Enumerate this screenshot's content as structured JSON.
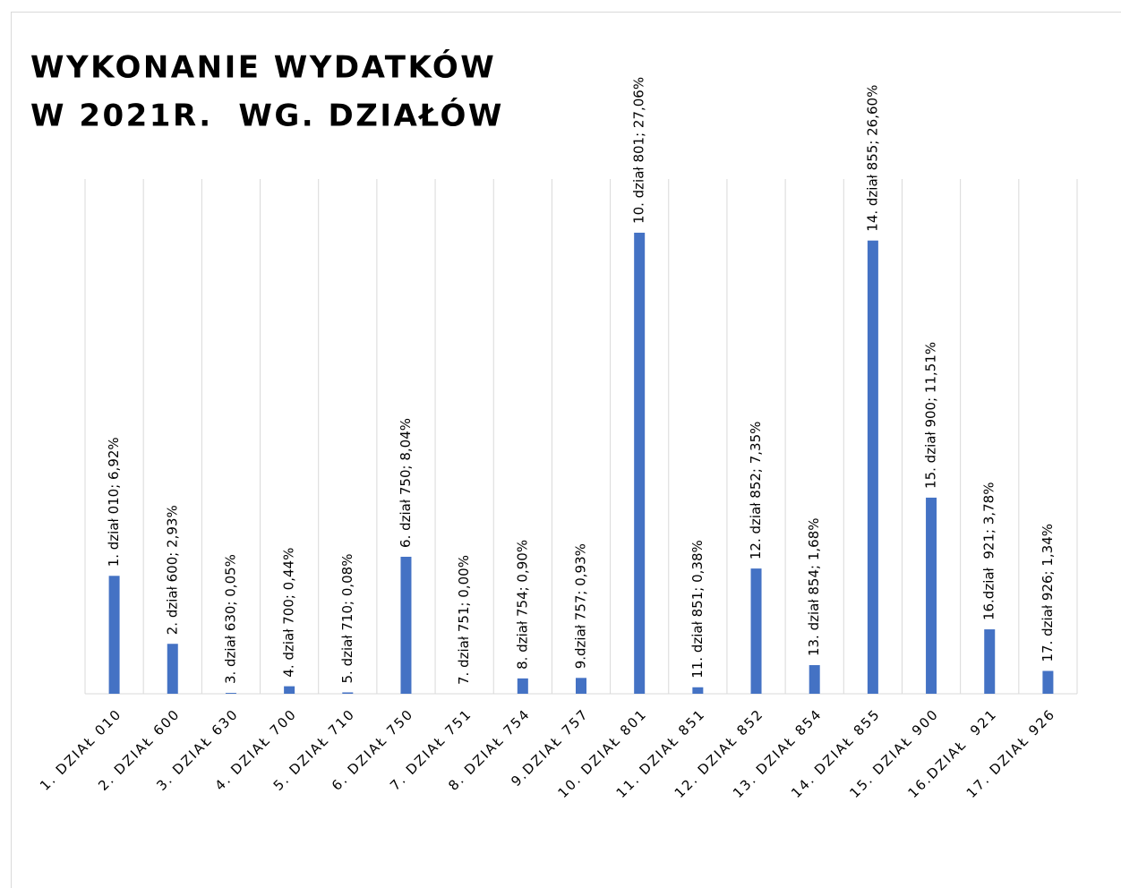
{
  "chart_data": {
    "type": "bar",
    "title": [
      "WYKONANIE WYDATKÓW",
      "W 2021R.  WG. DZIAŁÓW"
    ],
    "categories": [
      "1. DZIAŁ 010",
      "2. DZIAŁ 600",
      "3. DZIAŁ 630",
      "4. DZIAŁ 700",
      "5. DZIAŁ 710",
      "6. DZIAŁ 750",
      "7. DZIAŁ 751",
      "8. DZIAŁ 754",
      "9.DZIAŁ 757",
      "10. DZIAŁ 801",
      "11. DZIAŁ 851",
      "12. DZIAŁ 852",
      "13. DZIAŁ 854",
      "14. DZIAŁ 855",
      "15. DZIAŁ 900",
      "16.DZIAŁ  921",
      "17. DZIAŁ 926"
    ],
    "values": [
      6.92,
      2.93,
      0.05,
      0.44,
      0.08,
      8.04,
      0.0,
      0.9,
      0.93,
      27.06,
      0.38,
      7.35,
      1.68,
      26.6,
      11.51,
      3.78,
      1.34
    ],
    "value_labels": [
      "1. dział 010; 6,92%",
      "2. dział 600; 2,93%",
      "3. dział 630; 0,05%",
      "4. dział 700; 0,44%",
      "5. dział 710; 0,08%",
      "6. dział 750; 8,04%",
      "7. dział 751; 0,00%",
      "8. dział 754; 0,90%",
      "9.dział 757; 0,93%",
      "10. dział 801; 27,06%",
      "11. dział 851; 0,38%",
      "12. dział 852; 7,35%",
      "13. dział 854; 1,68%",
      "14. dział 855; 26,60%",
      "15. dział 900; 11,51%",
      "16.dział  921; 3,78%",
      "17. dział 926; 1,34%"
    ],
    "color": "#4472c4",
    "ylim": [
      0,
      30
    ]
  }
}
